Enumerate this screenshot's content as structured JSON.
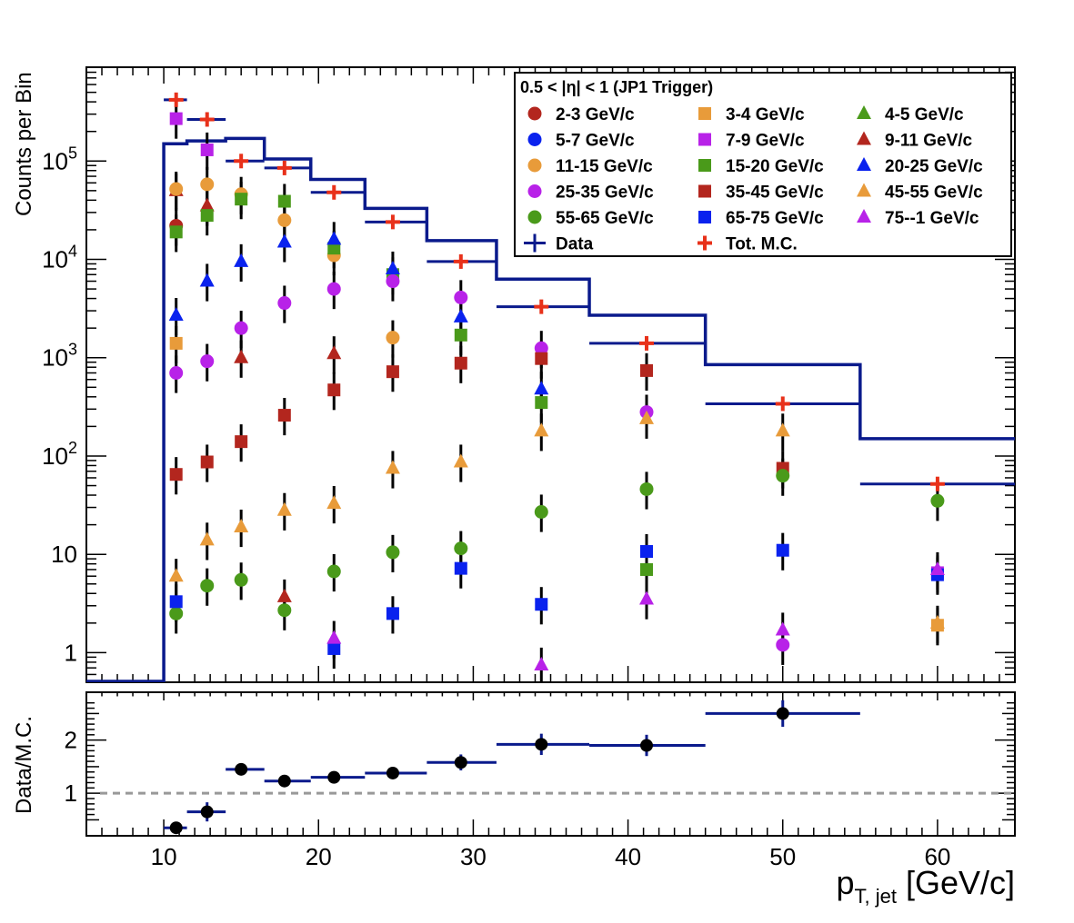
{
  "chart_data": [
    {
      "type": "scatter",
      "title": "",
      "ylabel": "Counts per Bin",
      "yscale": "log",
      "ylim": [
        0.5,
        900000
      ],
      "xlim": [
        5,
        65
      ],
      "y_tick_labels": [
        {
          "value": 1,
          "label": "1"
        },
        {
          "value": 10,
          "label": "10"
        },
        {
          "value": 100,
          "label": "10^2"
        },
        {
          "value": 1000,
          "label": "10^3"
        },
        {
          "value": 10000,
          "label": "10^4"
        },
        {
          "value": 100000,
          "label": "10^5"
        }
      ],
      "legend": {
        "title": "0.5 < |η| < 1 (JP1 Trigger)",
        "placement": "top-right"
      },
      "x_centers": [
        10.8,
        12.8,
        15.0,
        17.8,
        21.0,
        24.8,
        29.2,
        34.4,
        41.2,
        50.0,
        60.0
      ],
      "data_histogram": {
        "name": "Data",
        "color": "#0a1a8c",
        "edges": [
          5,
          10,
          11.5,
          14,
          16.5,
          19.5,
          23,
          27,
          31.5,
          37.5,
          45,
          55,
          65
        ],
        "values": [
          0.5,
          150000,
          160000,
          170000,
          105000,
          65000,
          33000,
          15500,
          6300,
          2700,
          850,
          150
        ]
      },
      "series": [
        {
          "name": "Tot. M.C.",
          "marker": "plus",
          "color": "#e8311a",
          "y": [
            420000,
            265000,
            100000,
            85000,
            48000,
            24000,
            9500,
            3300,
            1400,
            340,
            52
          ]
        },
        {
          "name": "2-3 GeV/c",
          "marker": "circle",
          "color": "#b3261e",
          "y": [
            22000,
            null,
            null,
            null,
            null,
            null,
            null,
            null,
            null,
            null,
            null
          ]
        },
        {
          "name": "3-4 GeV/c",
          "marker": "square",
          "color": "#e89b3a",
          "y": [
            1400,
            null,
            null,
            null,
            null,
            null,
            null,
            null,
            null,
            null,
            1.9
          ]
        },
        {
          "name": "4-5 GeV/c",
          "marker": "triangle",
          "color": "#4a9a1a",
          "y": [
            null,
            null,
            null,
            null,
            null,
            null,
            null,
            null,
            null,
            null,
            null
          ]
        },
        {
          "name": "5-7 GeV/c",
          "marker": "circle",
          "color": "#0a22ee",
          "y": [
            null,
            null,
            null,
            null,
            null,
            null,
            null,
            null,
            null,
            null,
            null
          ]
        },
        {
          "name": "7-9 GeV/c",
          "marker": "square",
          "color": "#b822e8",
          "y": [
            270000,
            130000,
            null,
            null,
            null,
            null,
            null,
            null,
            null,
            null,
            6.5
          ]
        },
        {
          "name": "9-11 GeV/c",
          "marker": "triangle",
          "color": "#b3261e",
          "y": [
            50000,
            35000,
            1000,
            3.7,
            1100,
            null,
            null,
            null,
            null,
            null,
            null
          ]
        },
        {
          "name": "11-15 GeV/c",
          "marker": "circle",
          "color": "#e89b3a",
          "y": [
            52000,
            58000,
            46000,
            25000,
            11000,
            1600,
            null,
            null,
            null,
            null,
            null
          ]
        },
        {
          "name": "15-20 GeV/c",
          "marker": "square",
          "color": "#4a9a1a",
          "y": [
            19000,
            28000,
            41000,
            39000,
            13000,
            7000,
            1700,
            350,
            7,
            null,
            null
          ]
        },
        {
          "name": "20-25 GeV/c",
          "marker": "triangle",
          "color": "#0a22ee",
          "y": [
            2700,
            6000,
            9500,
            15000,
            16000,
            8000,
            2600,
            480,
            null,
            null,
            null
          ]
        },
        {
          "name": "25-35 GeV/c",
          "marker": "circle",
          "color": "#b822e8",
          "y": [
            700,
            920,
            2000,
            3600,
            5000,
            6000,
            4100,
            1250,
            280,
            1.2,
            null
          ]
        },
        {
          "name": "35-45 GeV/c",
          "marker": "square",
          "color": "#b3261e",
          "y": [
            65,
            87,
            140,
            260,
            470,
            720,
            880,
            980,
            740,
            75,
            null
          ]
        },
        {
          "name": "45-55 GeV/c",
          "marker": "triangle",
          "color": "#e89b3a",
          "y": [
            6,
            14,
            19,
            28,
            33,
            75,
            87,
            180,
            240,
            180,
            2.0
          ]
        },
        {
          "name": "55-65 GeV/c",
          "marker": "circle",
          "color": "#4a9a1a",
          "y": [
            2.5,
            4.8,
            5.5,
            2.7,
            6.7,
            10.5,
            11.5,
            27,
            46,
            63,
            35
          ]
        },
        {
          "name": "65-75 GeV/c",
          "marker": "square",
          "color": "#0a22ee",
          "y": [
            3.3,
            null,
            null,
            null,
            1.1,
            2.5,
            7.2,
            3.1,
            10.7,
            11,
            6.2
          ]
        },
        {
          "name": "75--1 GeV/c",
          "marker": "triangle",
          "color": "#b822e8",
          "y": [
            null,
            null,
            null,
            null,
            1.4,
            null,
            null,
            0.75,
            3.5,
            1.7,
            7
          ]
        }
      ]
    },
    {
      "type": "scatter",
      "ylabel": "Data/M.C.",
      "xlabel": "p_{T, jet} [GeV/c]",
      "xlabel_main": "p",
      "xlabel_sub": "T, jet",
      "xlabel_unit": " [GeV/c]",
      "xlim": [
        5,
        65
      ],
      "ylim": [
        0.2,
        2.9
      ],
      "x_ticks": [
        10,
        20,
        30,
        40,
        50,
        60
      ],
      "x_tick_labels": [
        "10",
        "20",
        "30",
        "40",
        "50",
        "60"
      ],
      "y_ticks": [
        1,
        2
      ],
      "y_tick_labels": [
        "1",
        "2"
      ],
      "reference_line": 1,
      "series": [
        {
          "name": "Data/M.C.",
          "color": "#000000",
          "x": [
            10.8,
            12.8,
            15.0,
            17.8,
            21.0,
            24.8,
            29.2,
            34.4,
            41.2,
            50.0
          ],
          "y": [
            0.35,
            0.65,
            1.45,
            1.23,
            1.3,
            1.38,
            1.58,
            1.92,
            1.9,
            2.5
          ],
          "x_low": [
            10,
            11.5,
            14,
            16.5,
            19.5,
            23,
            27,
            31.5,
            37.5,
            45
          ],
          "x_high": [
            11.5,
            14,
            16.5,
            19.5,
            23,
            27,
            31.5,
            37.5,
            45,
            55
          ],
          "y_err": [
            0.05,
            0.18,
            0.05,
            0.05,
            0.05,
            0.05,
            0.15,
            0.2,
            0.2,
            0.25
          ]
        }
      ]
    }
  ]
}
